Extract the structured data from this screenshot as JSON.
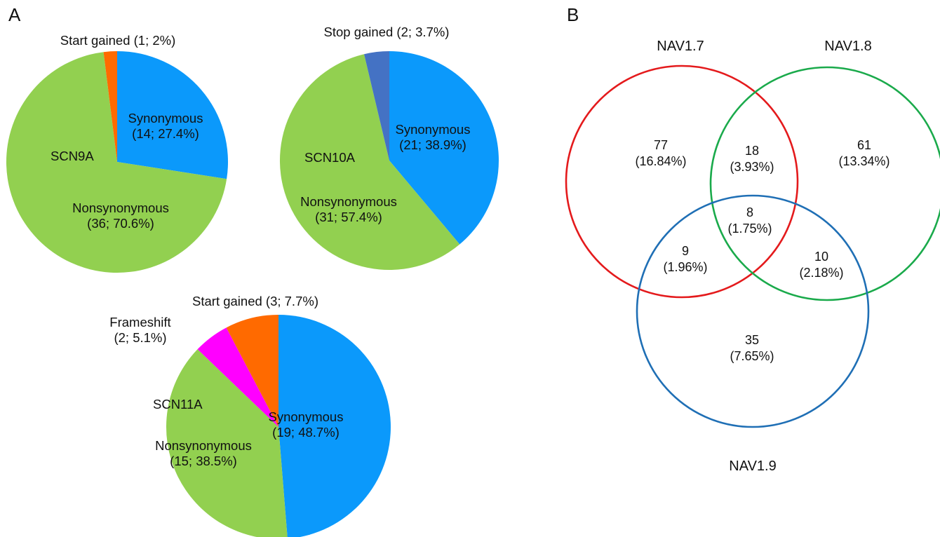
{
  "figure": {
    "panel_a_label": "A",
    "panel_b_label": "B"
  },
  "chart_data": [
    {
      "type": "pie",
      "name": "SCN9A",
      "slices": [
        {
          "label": "Synonymous",
          "count": 14,
          "percent": 27.4,
          "color": "#0b99fb"
        },
        {
          "label": "Nonsynonymous",
          "count": 36,
          "percent": 70.6,
          "color": "#92d050"
        },
        {
          "label": "Start gained",
          "count": 1,
          "percent": 2,
          "color": "#ff6a00"
        }
      ],
      "labels": {
        "title": "SCN9A",
        "s0": [
          "Synonymous",
          "(14; 27.4%)"
        ],
        "s1": [
          "Nonsynonymous",
          "(36; 70.6%)"
        ],
        "s2": [
          "Start gained (1; 2%)"
        ]
      }
    },
    {
      "type": "pie",
      "name": "SCN10A",
      "slices": [
        {
          "label": "Synonymous",
          "count": 21,
          "percent": 38.9,
          "color": "#0b99fb"
        },
        {
          "label": "Nonsynonymous",
          "count": 31,
          "percent": 57.4,
          "color": "#92d050"
        },
        {
          "label": "Stop gained",
          "count": 2,
          "percent": 3.7,
          "color": "#4472c4"
        }
      ],
      "labels": {
        "title": "SCN10A",
        "s0": [
          "Synonymous",
          "(21; 38.9%)"
        ],
        "s1": [
          "Nonsynonymous",
          "(31; 57.4%)"
        ],
        "s2": [
          "Stop gained (2; 3.7%)"
        ]
      }
    },
    {
      "type": "pie",
      "name": "SCN11A",
      "slices": [
        {
          "label": "Synonymous",
          "count": 19,
          "percent": 48.7,
          "color": "#0b99fb"
        },
        {
          "label": "Nonsynonymous",
          "count": 15,
          "percent": 38.5,
          "color": "#92d050"
        },
        {
          "label": "Frameshift",
          "count": 2,
          "percent": 5.1,
          "color": "#ff00ff"
        },
        {
          "label": "Start gained",
          "count": 3,
          "percent": 7.7,
          "color": "#ff6a00"
        }
      ],
      "labels": {
        "title": "SCN11A",
        "s0": [
          "Synonymous",
          "(19; 48.7%)"
        ],
        "s1": [
          "Nonsynonymous",
          "(15; 38.5%)"
        ],
        "s2": [
          "Frameshift",
          "(2; 5.1%)"
        ],
        "s3": [
          "Start gained (3; 7.7%)"
        ]
      }
    },
    {
      "type": "venn",
      "sets": [
        {
          "name": "NAV1.7",
          "color": "#e41a1c"
        },
        {
          "name": "NAV1.8",
          "color": "#1aaa4b"
        },
        {
          "name": "NAV1.9",
          "color": "#1f6fb5"
        }
      ],
      "regions": [
        {
          "sets": [
            "NAV1.7"
          ],
          "count": 77,
          "percent": "16.84%"
        },
        {
          "sets": [
            "NAV1.8"
          ],
          "count": 61,
          "percent": "13.34%"
        },
        {
          "sets": [
            "NAV1.9"
          ],
          "count": 35,
          "percent": "7.65%"
        },
        {
          "sets": [
            "NAV1.7",
            "NAV1.8"
          ],
          "count": 18,
          "percent": "3.93%"
        },
        {
          "sets": [
            "NAV1.7",
            "NAV1.9"
          ],
          "count": 9,
          "percent": "1.96%"
        },
        {
          "sets": [
            "NAV1.8",
            "NAV1.9"
          ],
          "count": 10,
          "percent": "2.18%"
        },
        {
          "sets": [
            "NAV1.7",
            "NAV1.8",
            "NAV1.9"
          ],
          "count": 8,
          "percent": "1.75%"
        }
      ]
    }
  ]
}
